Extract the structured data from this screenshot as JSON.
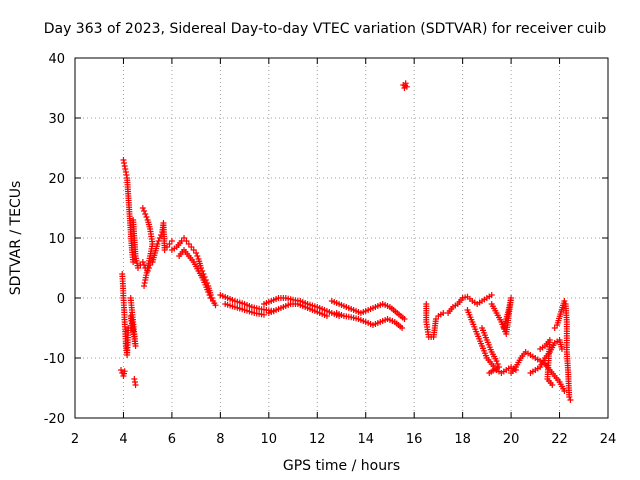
{
  "chart_data": {
    "type": "scatter",
    "title": "Day 363 of 2023, Sidereal Day-to-day VTEC variation (SDTVAR) for receiver cuib",
    "xlabel": "GPS time / hours",
    "ylabel": "SDTVAR / TECUs",
    "xlim": [
      2,
      24
    ],
    "ylim": [
      -20,
      40
    ],
    "xticks": [
      "2",
      "4",
      "6",
      "8",
      "10",
      "12",
      "14",
      "16",
      "18",
      "20",
      "22",
      "24"
    ],
    "yticks": [
      "-20",
      "-10",
      "0",
      "10",
      "20",
      "30",
      "40"
    ],
    "grid": true,
    "marker": "+",
    "color": "#ff0000",
    "segments": [
      {
        "name": "lower-cluster-4h",
        "points": [
          [
            3.9,
            -12.0
          ],
          [
            3.95,
            -12.5
          ],
          [
            4.0,
            -13.0
          ],
          [
            4.05,
            -12.2
          ]
        ]
      },
      {
        "name": "spike-4h",
        "points": [
          [
            3.95,
            4.0
          ],
          [
            3.98,
            2.0
          ],
          [
            4.0,
            0.0
          ],
          [
            4.03,
            -2.0
          ],
          [
            4.05,
            -4.0
          ],
          [
            4.08,
            -6.0
          ],
          [
            4.1,
            -8.0
          ],
          [
            4.15,
            -9.5
          ],
          [
            4.18,
            -7.0
          ],
          [
            4.2,
            -5.0
          ]
        ]
      },
      {
        "name": "rise-4h",
        "points": [
          [
            4.0,
            23.0
          ],
          [
            4.05,
            22.0
          ],
          [
            4.1,
            21.0
          ],
          [
            4.15,
            20.0
          ],
          [
            4.2,
            17.0
          ],
          [
            4.25,
            14.0
          ],
          [
            4.3,
            11.0
          ],
          [
            4.35,
            8.0
          ],
          [
            4.4,
            6.0
          ]
        ]
      },
      {
        "name": "branch-4.3h",
        "points": [
          [
            4.3,
            0.0
          ],
          [
            4.35,
            -2.0
          ],
          [
            4.4,
            -4.0
          ],
          [
            4.45,
            -6.0
          ],
          [
            4.5,
            -8.0
          ],
          [
            4.3,
            -3.0
          ],
          [
            4.4,
            -5.5
          ]
        ]
      },
      {
        "name": "low-4.5h",
        "points": [
          [
            4.45,
            -13.5
          ],
          [
            4.5,
            -14.5
          ]
        ]
      },
      {
        "name": "arc-4.5h",
        "points": [
          [
            4.4,
            13.0
          ],
          [
            4.45,
            10.0
          ],
          [
            4.5,
            7.0
          ],
          [
            4.6,
            5.0
          ],
          [
            4.7,
            5.5
          ],
          [
            4.8,
            6.0
          ],
          [
            4.9,
            5.0
          ],
          [
            5.0,
            4.5
          ],
          [
            5.1,
            5.5
          ],
          [
            5.2,
            6.0
          ]
        ]
      },
      {
        "name": "arc-5h",
        "points": [
          [
            4.8,
            15.0
          ],
          [
            4.9,
            14.0
          ],
          [
            5.0,
            13.0
          ],
          [
            5.1,
            11.5
          ],
          [
            5.2,
            9.0
          ],
          [
            5.1,
            7.0
          ],
          [
            5.0,
            5.0
          ],
          [
            4.9,
            3.0
          ],
          [
            4.85,
            2.0
          ]
        ]
      },
      {
        "name": "rise-5.5h",
        "points": [
          [
            5.2,
            6.0
          ],
          [
            5.3,
            7.5
          ],
          [
            5.4,
            9.0
          ],
          [
            5.5,
            10.0
          ],
          [
            5.6,
            11.0
          ],
          [
            5.65,
            12.5
          ],
          [
            5.7,
            8.0
          ],
          [
            5.8,
            8.5
          ],
          [
            5.9,
            9.0
          ],
          [
            6.0,
            9.5
          ]
        ]
      },
      {
        "name": "peak-6h",
        "points": [
          [
            6.0,
            8.0
          ],
          [
            6.2,
            8.5
          ],
          [
            6.4,
            9.5
          ],
          [
            6.5,
            10.0
          ],
          [
            6.6,
            9.5
          ],
          [
            6.7,
            9.0
          ],
          [
            6.8,
            8.5
          ],
          [
            6.9,
            8.0
          ],
          [
            7.0,
            7.5
          ],
          [
            7.1,
            6.5
          ],
          [
            7.2,
            5.0
          ],
          [
            7.3,
            4.0
          ],
          [
            7.4,
            3.0
          ],
          [
            7.5,
            2.0
          ],
          [
            7.6,
            0.5
          ],
          [
            7.7,
            -0.5
          ],
          [
            7.8,
            -1.2
          ]
        ]
      },
      {
        "name": "peak-6h-b",
        "points": [
          [
            6.3,
            7.0
          ],
          [
            6.5,
            8.0
          ],
          [
            6.7,
            7.0
          ],
          [
            6.9,
            6.0
          ],
          [
            7.1,
            4.5
          ],
          [
            7.3,
            3.0
          ],
          [
            7.5,
            1.0
          ],
          [
            7.6,
            0.0
          ]
        ]
      },
      {
        "name": "flat-8h",
        "points": [
          [
            8.0,
            0.5
          ],
          [
            8.3,
            0.0
          ],
          [
            8.6,
            -0.5
          ],
          [
            9.0,
            -1.0
          ],
          [
            9.3,
            -1.5
          ],
          [
            9.6,
            -1.8
          ],
          [
            9.9,
            -2.0
          ],
          [
            10.2,
            -2.2
          ]
        ]
      },
      {
        "name": "flat-8h-b",
        "points": [
          [
            8.2,
            -1.0
          ],
          [
            8.6,
            -1.5
          ],
          [
            9.0,
            -2.0
          ],
          [
            9.4,
            -2.5
          ],
          [
            9.8,
            -2.8
          ]
        ]
      },
      {
        "name": "flat-10h",
        "points": [
          [
            9.8,
            -1.0
          ],
          [
            10.1,
            -0.5
          ],
          [
            10.4,
            0.0
          ],
          [
            10.7,
            0.0
          ],
          [
            11.0,
            -0.3
          ],
          [
            11.3,
            -0.5
          ],
          [
            11.6,
            -1.0
          ],
          [
            12.0,
            -1.5
          ],
          [
            12.3,
            -2.0
          ],
          [
            12.6,
            -2.5
          ],
          [
            12.9,
            -3.0
          ]
        ]
      },
      {
        "name": "flat-10h-b",
        "points": [
          [
            10.0,
            -2.5
          ],
          [
            10.3,
            -2.0
          ],
          [
            10.6,
            -1.5
          ],
          [
            10.9,
            -1.0
          ],
          [
            11.2,
            -1.0
          ],
          [
            11.5,
            -1.5
          ],
          [
            11.8,
            -2.0
          ],
          [
            12.1,
            -2.5
          ],
          [
            12.4,
            -3.0
          ]
        ]
      },
      {
        "name": "flat-12h",
        "points": [
          [
            12.6,
            -0.5
          ],
          [
            12.9,
            -1.0
          ],
          [
            13.2,
            -1.5
          ],
          [
            13.5,
            -2.0
          ],
          [
            13.8,
            -2.5
          ],
          [
            14.1,
            -2.0
          ],
          [
            14.4,
            -1.5
          ],
          [
            14.7,
            -1.0
          ],
          [
            15.0,
            -1.5
          ],
          [
            15.3,
            -2.5
          ],
          [
            15.6,
            -3.5
          ]
        ]
      },
      {
        "name": "flat-13h",
        "points": [
          [
            12.8,
            -2.5
          ],
          [
            13.1,
            -3.0
          ],
          [
            13.4,
            -3.2
          ],
          [
            13.7,
            -3.5
          ],
          [
            14.0,
            -4.0
          ],
          [
            14.3,
            -4.5
          ],
          [
            14.6,
            -4.0
          ],
          [
            14.9,
            -3.5
          ],
          [
            15.2,
            -4.0
          ],
          [
            15.5,
            -5.0
          ]
        ]
      },
      {
        "name": "outlier-15.7h",
        "points": [
          [
            15.55,
            35.5
          ],
          [
            15.6,
            35.0
          ],
          [
            15.65,
            35.8
          ],
          [
            15.7,
            35.2
          ]
        ]
      },
      {
        "name": "sparse-16.5h",
        "points": [
          [
            16.5,
            -1.0
          ],
          [
            16.5,
            -4.0
          ],
          [
            16.6,
            -6.5
          ],
          [
            16.8,
            -6.5
          ],
          [
            16.9,
            -3.5
          ],
          [
            17.0,
            -3.0
          ],
          [
            17.2,
            -2.5
          ]
        ]
      },
      {
        "name": "hump-17.5h",
        "points": [
          [
            17.4,
            -2.5
          ],
          [
            17.6,
            -1.5
          ],
          [
            17.8,
            -1.0
          ],
          [
            18.0,
            0.0
          ],
          [
            18.2,
            0.2
          ],
          [
            18.4,
            -0.5
          ],
          [
            18.6,
            -1.0
          ],
          [
            18.8,
            -0.5
          ],
          [
            19.0,
            0.0
          ],
          [
            19.2,
            0.5
          ]
        ]
      },
      {
        "name": "descent-18.5h",
        "points": [
          [
            18.2,
            -2.0
          ],
          [
            18.4,
            -4.0
          ],
          [
            18.6,
            -6.0
          ],
          [
            18.8,
            -8.0
          ],
          [
            19.0,
            -10.0
          ],
          [
            19.2,
            -11.0
          ],
          [
            19.4,
            -12.0
          ],
          [
            19.6,
            -12.5
          ],
          [
            19.8,
            -12.0
          ],
          [
            20.0,
            -11.5
          ],
          [
            20.2,
            -12.0
          ]
        ]
      },
      {
        "name": "rise-19.5h",
        "points": [
          [
            19.2,
            -1.0
          ],
          [
            19.4,
            -2.5
          ],
          [
            19.6,
            -4.0
          ],
          [
            19.8,
            -6.0
          ],
          [
            20.0,
            0.0
          ],
          [
            19.9,
            -2.0
          ],
          [
            19.7,
            -5.0
          ]
        ]
      },
      {
        "name": "descent-19h-b",
        "points": [
          [
            18.8,
            -5.0
          ],
          [
            19.0,
            -7.0
          ],
          [
            19.2,
            -9.0
          ],
          [
            19.4,
            -10.5
          ],
          [
            19.5,
            -11.5
          ],
          [
            19.1,
            -12.5
          ]
        ]
      },
      {
        "name": "hump-20h",
        "points": [
          [
            20.0,
            -12.5
          ],
          [
            20.2,
            -11.5
          ],
          [
            20.4,
            -10.0
          ],
          [
            20.6,
            -9.0
          ],
          [
            20.8,
            -9.5
          ],
          [
            21.0,
            -10.0
          ],
          [
            21.2,
            -10.5
          ],
          [
            21.4,
            -11.0
          ],
          [
            21.6,
            -12.0
          ],
          [
            21.8,
            -13.0
          ],
          [
            22.0,
            -14.0
          ],
          [
            22.2,
            -15.5
          ]
        ]
      },
      {
        "name": "branch-21h",
        "points": [
          [
            20.8,
            -12.5
          ],
          [
            21.0,
            -12.0
          ],
          [
            21.2,
            -11.5
          ],
          [
            21.4,
            -10.0
          ],
          [
            21.6,
            -9.0
          ],
          [
            21.8,
            -7.5
          ],
          [
            22.0,
            -7.0
          ],
          [
            22.1,
            -8.5
          ]
        ]
      },
      {
        "name": "tail-22h",
        "points": [
          [
            21.8,
            -5.0
          ],
          [
            21.9,
            -4.5
          ],
          [
            22.2,
            -0.5
          ],
          [
            22.25,
            -1.0
          ],
          [
            22.3,
            -4.0
          ],
          [
            22.3,
            -9.0
          ],
          [
            22.35,
            -12.0
          ],
          [
            22.4,
            -16.5
          ],
          [
            22.45,
            -17.0
          ]
        ]
      },
      {
        "name": "sparse-21h",
        "points": [
          [
            21.2,
            -8.5
          ],
          [
            21.4,
            -8.0
          ],
          [
            21.6,
            -7.0
          ],
          [
            21.5,
            -13.5
          ],
          [
            21.7,
            -14.5
          ]
        ]
      }
    ]
  }
}
